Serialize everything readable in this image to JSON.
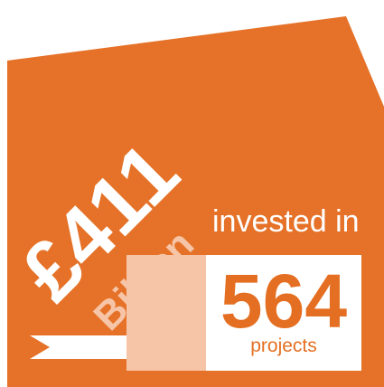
{
  "graphic": {
    "amount": "£411",
    "amount_unit": "Billion",
    "invested_label": "invested in",
    "project_count": "564",
    "projects_label": "projects"
  },
  "colors": {
    "background_shape": "#e57228",
    "light_band": "#f6c4a6",
    "white": "#ffffff"
  }
}
